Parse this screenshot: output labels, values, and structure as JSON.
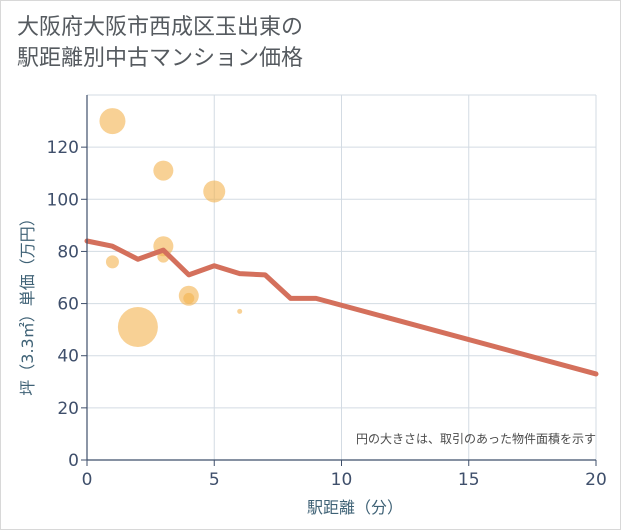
{
  "title_line1": "大阪府大阪市西成区玉出東の",
  "title_line2": "駅距離別中古マンション価格",
  "chart_data": {
    "type": "scatter",
    "title": "大阪府大阪市西成区玉出東の駅距離別中古マンション価格",
    "xlabel": "駅距離（分）",
    "ylabel": "坪（3.3㎡）単価（万円）",
    "xlim": [
      0,
      20
    ],
    "ylim": [
      0,
      140
    ],
    "xticks": [
      0,
      5,
      10,
      15,
      20
    ],
    "yticks": [
      0,
      20,
      40,
      60,
      80,
      100,
      120
    ],
    "grid": true,
    "annotation": "円の大きさは、取引のあった物件面積を示す",
    "colors": {
      "bubble": "#f3b24f",
      "line": "#d4705c",
      "grid": "#d3dbe3",
      "axis": "#3f4f6b"
    },
    "bubbles": [
      {
        "x": 1,
        "y": 130,
        "size": 26
      },
      {
        "x": 1,
        "y": 76,
        "size": 13
      },
      {
        "x": 2,
        "y": 51,
        "size": 40
      },
      {
        "x": 3,
        "y": 111,
        "size": 20
      },
      {
        "x": 3,
        "y": 82,
        "size": 20
      },
      {
        "x": 3,
        "y": 78,
        "size": 12
      },
      {
        "x": 4,
        "y": 63,
        "size": 20
      },
      {
        "x": 4,
        "y": 62,
        "size": 11
      },
      {
        "x": 5,
        "y": 103,
        "size": 22
      },
      {
        "x": 6,
        "y": 57,
        "size": 5
      }
    ],
    "series": [
      {
        "name": "trend",
        "x": [
          0,
          1,
          2,
          3,
          4,
          5,
          6,
          7,
          8,
          9,
          20
        ],
        "values": [
          84,
          82,
          77,
          80.5,
          71,
          74.5,
          71.5,
          71,
          62,
          62,
          33
        ]
      }
    ]
  }
}
